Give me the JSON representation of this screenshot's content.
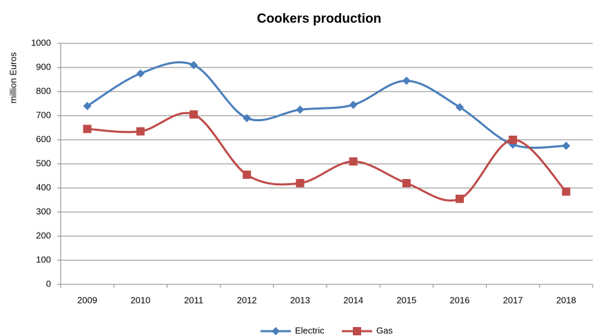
{
  "chart_data": {
    "type": "line",
    "title": "Cookers production",
    "y_label": "million Euros",
    "categories": [
      "2009",
      "2010",
      "2011",
      "2012",
      "2013",
      "2014",
      "2015",
      "2016",
      "2017",
      "2018"
    ],
    "series": [
      {
        "name": "Electric",
        "color": "#4a7ebb",
        "marker": "diamond",
        "values": [
          740,
          875,
          910,
          690,
          725,
          745,
          845,
          735,
          580,
          575
        ]
      },
      {
        "name": "Gas",
        "color": "#be4b48",
        "marker": "square",
        "values": [
          645,
          635,
          705,
          455,
          420,
          510,
          420,
          355,
          600,
          385
        ]
      }
    ],
    "ylim": [
      0,
      1000
    ],
    "yticks": [
      0,
      100,
      200,
      300,
      400,
      500,
      600,
      700,
      800,
      900,
      1000
    ],
    "grid": true,
    "smooth": true,
    "legend": "bottom"
  }
}
